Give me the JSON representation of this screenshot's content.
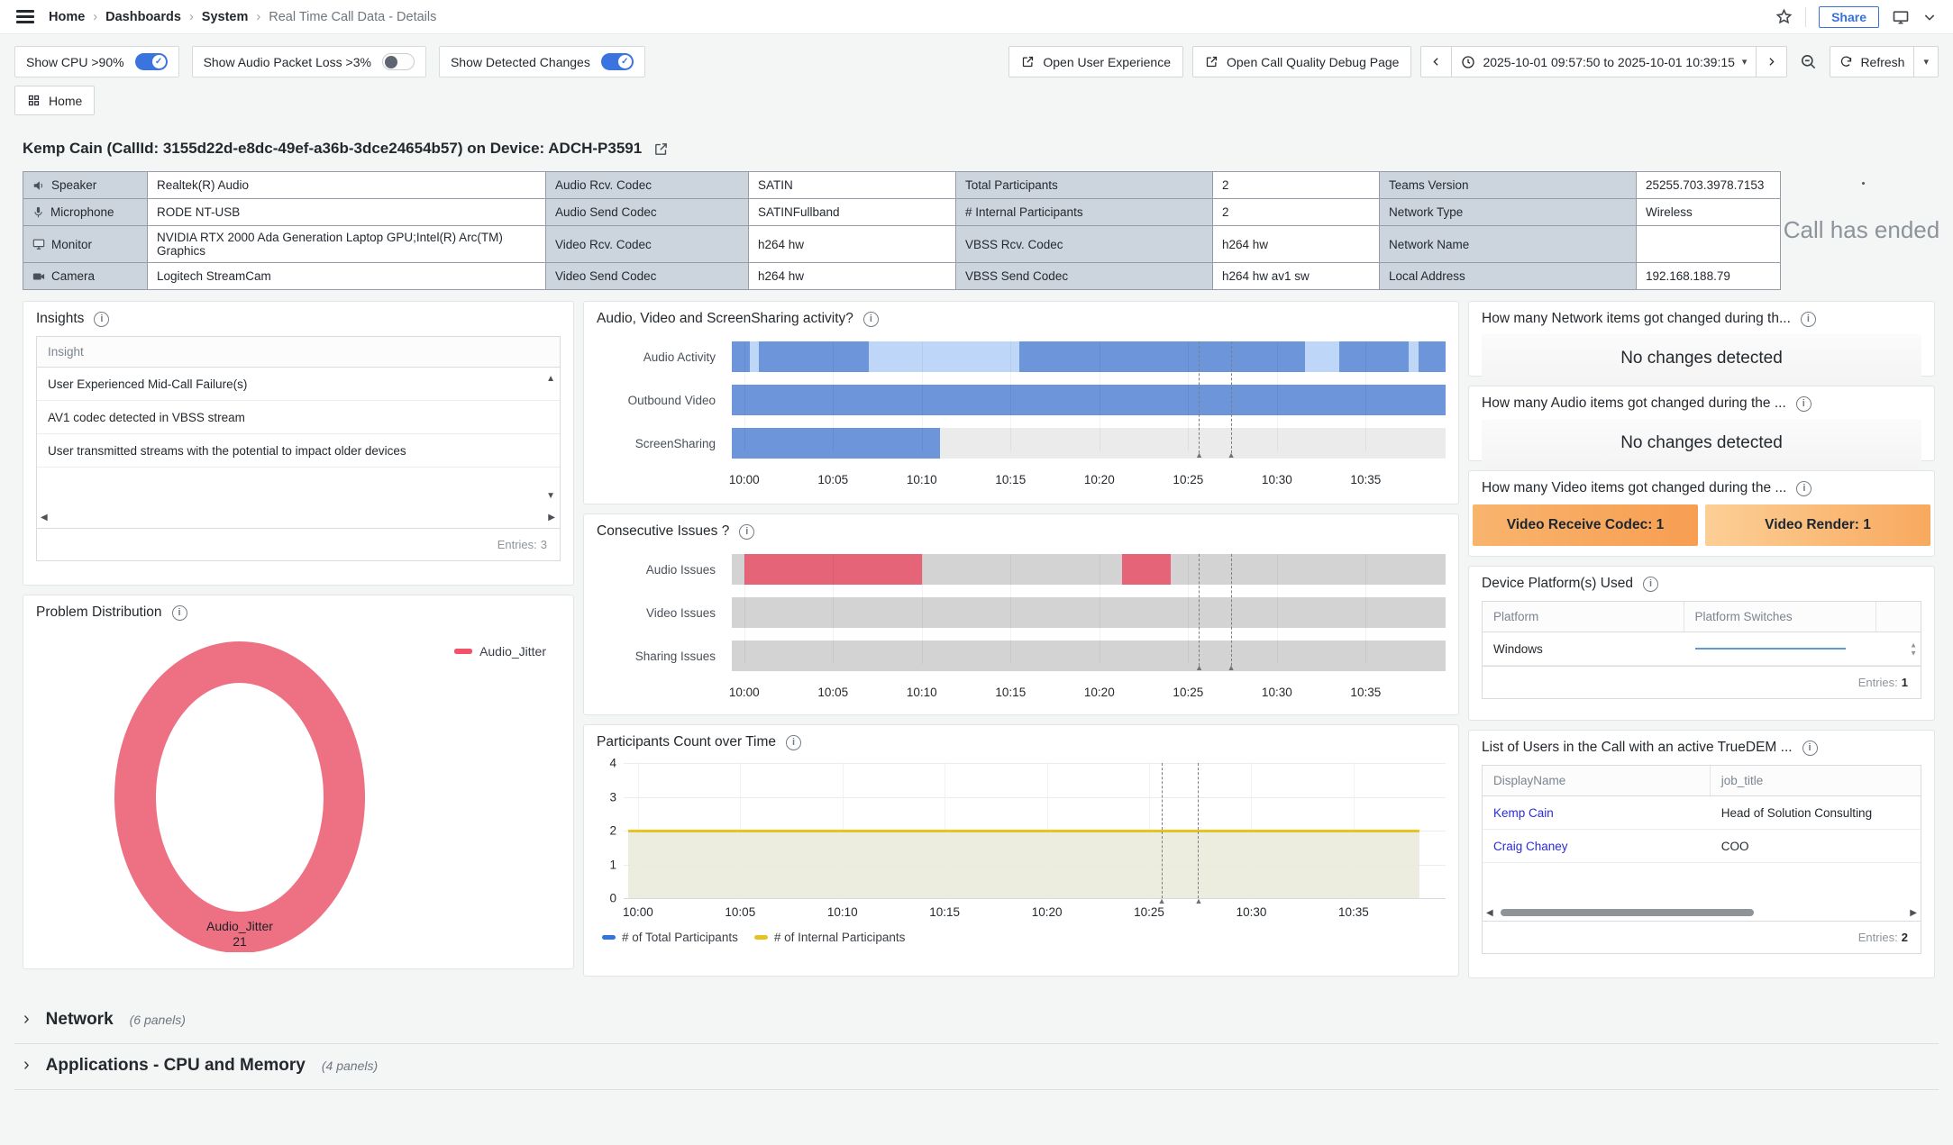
{
  "header": {
    "breadcrumb": [
      "Home",
      "Dashboards",
      "System",
      "Real Time Call Data - Details"
    ],
    "share_label": "Share"
  },
  "toolbar": {
    "toggles": [
      {
        "label": "Show CPU >90%",
        "state": "on"
      },
      {
        "label": "Show Audio Packet Loss >3%",
        "state": "off"
      },
      {
        "label": "Show Detected Changes",
        "state": "on"
      }
    ],
    "link_buttons": [
      {
        "label": "Open User Experience"
      },
      {
        "label": "Open Call Quality Debug Page"
      }
    ],
    "time_range": "2025-10-01 09:57:50 to 2025-10-01 10:39:15",
    "refresh_label": "Refresh",
    "home_label": "Home"
  },
  "call": {
    "title": "Kemp Cain (CallId: 3155d22d-e8dc-49ef-a36b-3dce24654b57) on Device: ADCH-P3591",
    "status": "Call has ended"
  },
  "info_table": {
    "rows": [
      {
        "icon": "speaker-icon",
        "cells": [
          "Speaker",
          "Realtek(R) Audio",
          "Audio Rcv. Codec",
          "SATIN",
          "Total Participants",
          "2",
          "Teams Version",
          "25255.703.3978.7153"
        ]
      },
      {
        "icon": "microphone-icon",
        "cells": [
          "Microphone",
          "RODE NT-USB",
          "Audio Send Codec",
          "SATINFullband",
          "# Internal Participants",
          "2",
          "Network Type",
          "Wireless"
        ]
      },
      {
        "icon": "monitor-icon",
        "cells": [
          "Monitor",
          "NVIDIA RTX 2000 Ada Generation Laptop GPU;Intel(R) Arc(TM) Graphics",
          "Video Rcv. Codec",
          "h264 hw",
          "VBSS Rcv. Codec",
          "h264 hw",
          "Network Name",
          ""
        ]
      },
      {
        "icon": "camera-icon",
        "cells": [
          "Camera",
          "Logitech StreamCam",
          "Video Send Codec",
          "h264 hw",
          "VBSS Send Codec",
          "h264 hw av1 sw",
          "Local Address",
          "192.168.188.79"
        ]
      }
    ]
  },
  "panels": {
    "insights": {
      "title": "Insights",
      "column": "Insight",
      "rows": [
        "User Experienced Mid-Call Failure(s)",
        "AV1 codec detected in VBSS stream",
        "User transmitted streams with the potential to impact older devices"
      ],
      "entries_label": "Entries:",
      "entries": "3"
    },
    "changes": [
      {
        "title": "How many Network items got changed during th...",
        "value": "No changes detected"
      },
      {
        "title": "How many Audio items got changed during the ...",
        "value": "No changes detected"
      },
      {
        "title": "How many Video items got changed during the ...",
        "badges": [
          {
            "label": "Video Receive Codec: 1"
          },
          {
            "label": "Video Render: 1"
          }
        ]
      }
    ],
    "platforms": {
      "title": "Device Platform(s) Used",
      "columns": [
        "Platform",
        "Platform Switches"
      ],
      "rows": [
        {
          "platform": "Windows"
        }
      ],
      "entries_label": "Entries:",
      "entries": "1"
    },
    "users": {
      "title": "List of Users in the Call with an active TrueDEM ...",
      "columns": [
        "DisplayName",
        "job_title"
      ],
      "rows": [
        {
          "name": "Kemp Cain",
          "job": "Head of Solution Consulting"
        },
        {
          "name": "Craig Chaney",
          "job": "COO"
        }
      ],
      "entries_label": "Entries:",
      "entries": "2"
    }
  },
  "sections": [
    {
      "label": "Network",
      "count": "(6 panels)"
    },
    {
      "label": "Applications - CPU and Memory",
      "count": "(4 panels)"
    }
  ],
  "chart_data": [
    {
      "id": "activity",
      "type": "timeline",
      "title": "Audio, Video and ScreenSharing activity?",
      "time_base": "10:00",
      "x_axis": {
        "min": -0.7,
        "max": 39.5,
        "ticks": [
          {
            "t": 0,
            "label": "10:00"
          },
          {
            "t": 5,
            "label": "10:05"
          },
          {
            "t": 10,
            "label": "10:10"
          },
          {
            "t": 15,
            "label": "10:15"
          },
          {
            "t": 20,
            "label": "10:20"
          },
          {
            "t": 25,
            "label": "10:25"
          },
          {
            "t": 30,
            "label": "10:30"
          },
          {
            "t": 35,
            "label": "10:35"
          }
        ]
      },
      "markers": [
        25.6,
        27.4
      ],
      "colors": {
        "active": "#6c95da",
        "partial": "#bed6f7",
        "inactive": "#ebebeb"
      },
      "rows": [
        {
          "label": "Audio Activity",
          "segments": [
            {
              "start": -0.7,
              "end": 0.3,
              "state": "active"
            },
            {
              "start": 0.3,
              "end": 0.8,
              "state": "partial"
            },
            {
              "start": 0.8,
              "end": 7.0,
              "state": "active"
            },
            {
              "start": 7.0,
              "end": 15.5,
              "state": "partial"
            },
            {
              "start": 15.5,
              "end": 31.6,
              "state": "active"
            },
            {
              "start": 31.6,
              "end": 33.5,
              "state": "partial"
            },
            {
              "start": 33.5,
              "end": 37.4,
              "state": "active"
            },
            {
              "start": 37.4,
              "end": 38.0,
              "state": "partial"
            },
            {
              "start": 38.0,
              "end": 39.5,
              "state": "active"
            }
          ]
        },
        {
          "label": "Outbound Video",
          "segments": [
            {
              "start": -0.7,
              "end": 39.5,
              "state": "active"
            }
          ]
        },
        {
          "label": "ScreenSharing",
          "segments": [
            {
              "start": -0.7,
              "end": 11.0,
              "state": "active"
            },
            {
              "start": 11.0,
              "end": 39.5,
              "state": "inactive"
            }
          ]
        }
      ]
    },
    {
      "id": "issues",
      "type": "timeline",
      "title": "Consecutive Issues ?",
      "time_base": "10:00",
      "x_axis": {
        "min": -0.7,
        "max": 39.5,
        "ticks": [
          {
            "t": 0,
            "label": "10:00"
          },
          {
            "t": 5,
            "label": "10:05"
          },
          {
            "t": 10,
            "label": "10:10"
          },
          {
            "t": 15,
            "label": "10:15"
          },
          {
            "t": 20,
            "label": "10:20"
          },
          {
            "t": 25,
            "label": "10:25"
          },
          {
            "t": 30,
            "label": "10:30"
          },
          {
            "t": 35,
            "label": "10:35"
          }
        ]
      },
      "markers": [
        25.6,
        27.4
      ],
      "colors": {
        "issue": "#e56478",
        "none": "#d3d3d3"
      },
      "rows": [
        {
          "label": "Audio Issues",
          "segments": [
            {
              "start": -0.7,
              "end": 0.0,
              "state": "none"
            },
            {
              "start": 0.0,
              "end": 10.0,
              "state": "issue"
            },
            {
              "start": 10.0,
              "end": 21.3,
              "state": "none"
            },
            {
              "start": 21.3,
              "end": 24.0,
              "state": "issue"
            },
            {
              "start": 24.0,
              "end": 39.5,
              "state": "none"
            }
          ]
        },
        {
          "label": "Video Issues",
          "segments": [
            {
              "start": -0.7,
              "end": 39.5,
              "state": "none"
            }
          ]
        },
        {
          "label": "Sharing Issues",
          "segments": [
            {
              "start": -0.7,
              "end": 39.5,
              "state": "none"
            }
          ]
        }
      ]
    },
    {
      "id": "participants",
      "type": "line",
      "title": "Participants Count over Time",
      "y_axis": {
        "min": 0,
        "max": 4,
        "ticks": [
          0,
          1,
          2,
          3,
          4
        ]
      },
      "x_axis": {
        "min": -0.7,
        "max": 39.5,
        "ticks": [
          {
            "t": 0,
            "label": "10:00"
          },
          {
            "t": 5,
            "label": "10:05"
          },
          {
            "t": 10,
            "label": "10:10"
          },
          {
            "t": 15,
            "label": "10:15"
          },
          {
            "t": 20,
            "label": "10:20"
          },
          {
            "t": 25,
            "label": "10:25"
          },
          {
            "t": 30,
            "label": "10:30"
          },
          {
            "t": 35,
            "label": "10:35"
          }
        ]
      },
      "markers": [
        25.6,
        27.4
      ],
      "series": [
        {
          "name": "# of Total Participants",
          "color": "#3274d9",
          "value": 2,
          "start": -0.5,
          "end": 38.2
        },
        {
          "name": "# of Internal Participants",
          "color": "#e8c320",
          "value": 2,
          "start": -0.5,
          "end": 38.2,
          "fill": "#eaebdc"
        }
      ]
    },
    {
      "id": "problem_distribution",
      "type": "donut",
      "title": "Problem Distribution",
      "slices": [
        {
          "label": "Audio_Jitter",
          "value": 21,
          "color": "#ee7083"
        }
      ],
      "legend_color": "#f2536b",
      "legend_position": "top-right"
    }
  ]
}
